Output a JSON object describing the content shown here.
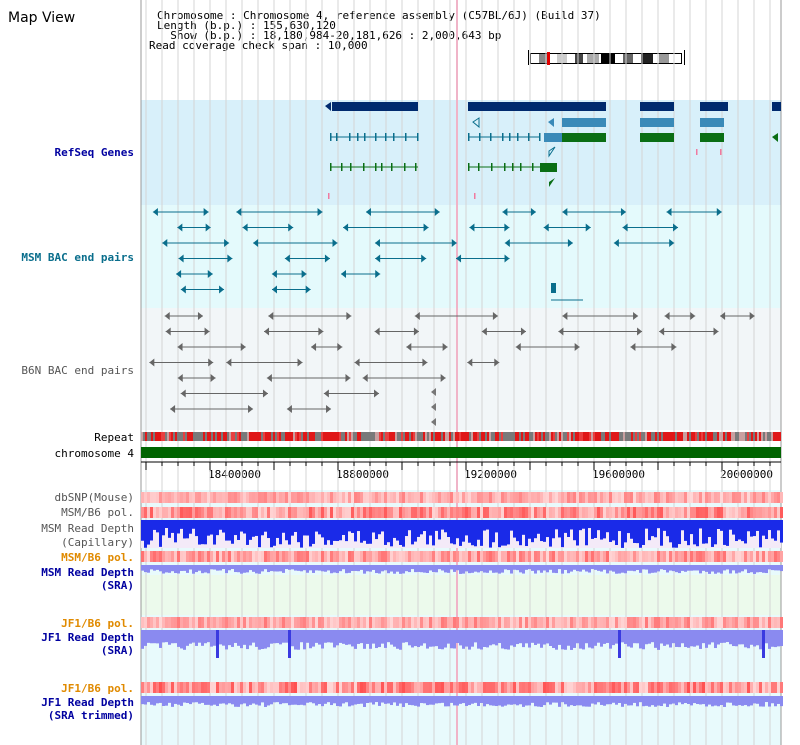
{
  "title": "Map View",
  "header": {
    "chromosome_label": "Chromosome",
    "chromosome_value": "Chromosome 4, reference assembly (C57BL/6J) (Build 37)",
    "length_label": "Length (b.p.)",
    "length_value": "155,630,120",
    "show_label": "Show (b.p.)",
    "show_value": "18,180,984-20,181,626 : 2,000,643 bp",
    "coverage_label": "Read coverage check span",
    "coverage_value": "10,000"
  },
  "tracks": {
    "refseq": "RefSeq Genes",
    "msm_bac": "MSM BAC end pairs",
    "b6n_bac": "B6N BAC end pairs",
    "repeat": "Repeat",
    "chromosome": "chromosome 4",
    "dbsnp": "dbSNP(Mouse)",
    "msm_b6_pol_1": "MSM/B6 pol.",
    "msm_read_depth_cap_1": "MSM Read Depth",
    "msm_read_depth_cap_2": "(Capillary)",
    "msm_b6_pol_2": "MSM/B6 pol.",
    "msm_read_depth_sra_1": "MSM Read Depth",
    "msm_read_depth_sra_2": "(SRA)",
    "jf1_b6_pol_1": "JF1/B6 pol.",
    "jf1_read_depth_sra_1": "JF1 Read Depth",
    "jf1_read_depth_sra_2": "(SRA)",
    "jf1_b6_pol_2": "JF1/B6 pol.",
    "jf1_read_depth_trim_1": "JF1 Read Depth",
    "jf1_read_depth_trim_2": "(SRA trimmed)"
  },
  "axis": {
    "ticks": [
      "18400000",
      "18800000",
      "19200000",
      "19600000",
      "20000000"
    ]
  },
  "colors": {
    "refseq_bg": "#d8f0fa",
    "msm_bg": "#e4fafc",
    "b6n_bg": "#f2f6f8",
    "lower_bg": "#e8fafc",
    "navy": "#002a6e",
    "steel": "#3a8ab8",
    "green": "#0a6e14",
    "teal": "#0a6e8c",
    "chrom_green": "#006400",
    "repeat_red": "#e02020",
    "depth_blue": "#1a2ae8",
    "depth_light": "#8a8af0"
  }
}
